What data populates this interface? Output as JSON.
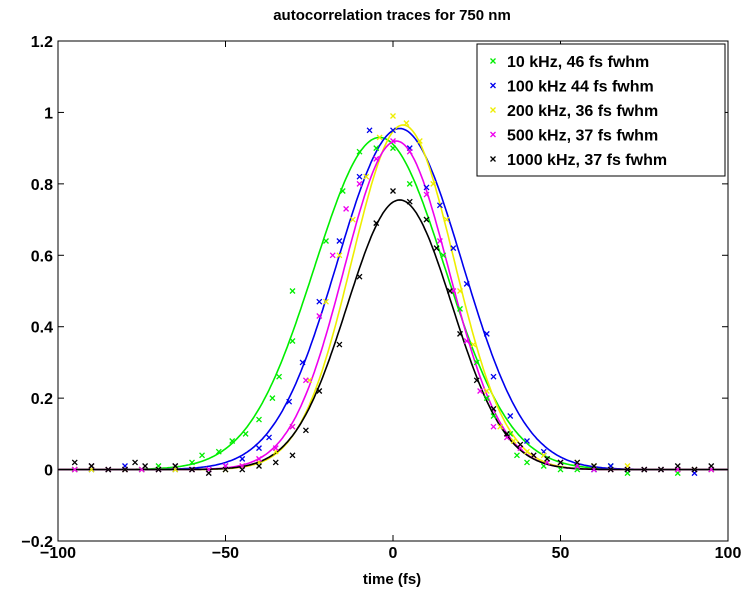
{
  "chart_data": {
    "type": "scatter",
    "title": "autocorrelation traces for 750 nm",
    "xlabel": "time (fs)",
    "ylabel": "",
    "xlim": [
      -100,
      100
    ],
    "ylim": [
      -0.2,
      1.2
    ],
    "xticks": [
      -100,
      -50,
      0,
      50,
      100
    ],
    "yticks": [
      -0.2,
      0,
      0.2,
      0.4,
      0.6,
      0.8,
      1,
      1.2
    ],
    "xtick_labels": [
      "−100",
      "−50",
      "0",
      "50",
      "100"
    ],
    "ytick_labels": [
      "−0.2",
      "0",
      "0.2",
      "0.4",
      "0.6",
      "0.8",
      "1",
      "1.2"
    ],
    "grid": false,
    "legend": "top-right",
    "series": [
      {
        "name": "10 kHz, 46 fs fwhm",
        "color": "#00ee00",
        "fit": {
          "peak": 0.93,
          "center": -4,
          "fwhm": 46
        },
        "points": [
          [
            -95,
            0.0
          ],
          [
            -90,
            0.01
          ],
          [
            -85,
            0.0
          ],
          [
            -80,
            0.0
          ],
          [
            -75,
            0.0
          ],
          [
            -70,
            0.01
          ],
          [
            -65,
            0.01
          ],
          [
            -60,
            0.02
          ],
          [
            -57,
            0.04
          ],
          [
            -52,
            0.05
          ],
          [
            -48,
            0.08
          ],
          [
            -44,
            0.1
          ],
          [
            -40,
            0.14
          ],
          [
            -36,
            0.2
          ],
          [
            -34,
            0.26
          ],
          [
            -30,
            0.36
          ],
          [
            -30,
            0.5
          ],
          [
            -20,
            0.64
          ],
          [
            -15,
            0.78
          ],
          [
            -10,
            0.89
          ],
          [
            -5,
            0.9
          ],
          [
            0,
            0.9
          ],
          [
            5,
            0.8
          ],
          [
            10,
            0.7
          ],
          [
            15,
            0.6
          ],
          [
            20,
            0.45
          ],
          [
            25,
            0.3
          ],
          [
            28,
            0.2
          ],
          [
            30,
            0.15
          ],
          [
            35,
            0.1
          ],
          [
            37,
            0.04
          ],
          [
            40,
            0.02
          ],
          [
            45,
            0.01
          ],
          [
            50,
            0.0
          ],
          [
            55,
            0.0
          ],
          [
            60,
            0.0
          ],
          [
            65,
            0.01
          ],
          [
            70,
            -0.01
          ],
          [
            75,
            0.0
          ],
          [
            80,
            0.0
          ],
          [
            85,
            -0.01
          ],
          [
            90,
            0.0
          ],
          [
            95,
            0.0
          ]
        ]
      },
      {
        "name": "100 kHz 44 fs fwhm",
        "color": "#0000ee",
        "fit": {
          "peak": 0.955,
          "center": 2,
          "fwhm": 44
        },
        "points": [
          [
            -95,
            0.0
          ],
          [
            -90,
            0.0
          ],
          [
            -85,
            0.0
          ],
          [
            -80,
            0.01
          ],
          [
            -75,
            0.0
          ],
          [
            -70,
            0.0
          ],
          [
            -65,
            0.0
          ],
          [
            -60,
            0.0
          ],
          [
            -55,
            0.0
          ],
          [
            -50,
            0.01
          ],
          [
            -45,
            0.03
          ],
          [
            -40,
            0.06
          ],
          [
            -37,
            0.09
          ],
          [
            -31,
            0.19
          ],
          [
            -27,
            0.3
          ],
          [
            -22,
            0.47
          ],
          [
            -16,
            0.64
          ],
          [
            -10,
            0.82
          ],
          [
            -7,
            0.95
          ],
          [
            0,
            0.95
          ],
          [
            5,
            0.9
          ],
          [
            10,
            0.79
          ],
          [
            14,
            0.74
          ],
          [
            18,
            0.62
          ],
          [
            22,
            0.52
          ],
          [
            28,
            0.38
          ],
          [
            30,
            0.26
          ],
          [
            35,
            0.15
          ],
          [
            40,
            0.08
          ],
          [
            45,
            0.05
          ],
          [
            50,
            0.02
          ],
          [
            55,
            0.01
          ],
          [
            60,
            0.0
          ],
          [
            65,
            0.01
          ],
          [
            70,
            0.0
          ],
          [
            75,
            0.0
          ],
          [
            80,
            0.0
          ],
          [
            85,
            0.0
          ],
          [
            90,
            -0.01
          ],
          [
            95,
            0.0
          ]
        ]
      },
      {
        "name": "200 kHz, 36 fs fwhm",
        "color": "#eeee00",
        "fit": {
          "peak": 0.965,
          "center": 3,
          "fwhm": 36
        },
        "points": [
          [
            -95,
            0.0
          ],
          [
            -90,
            0.0
          ],
          [
            -85,
            0.0
          ],
          [
            -80,
            0.0
          ],
          [
            -75,
            0.0
          ],
          [
            -70,
            0.0
          ],
          [
            -65,
            0.0
          ],
          [
            -60,
            0.0
          ],
          [
            -55,
            0.0
          ],
          [
            -50,
            0.0
          ],
          [
            -45,
            0.01
          ],
          [
            -40,
            0.02
          ],
          [
            -35,
            0.05
          ],
          [
            -30,
            0.12
          ],
          [
            -25,
            0.25
          ],
          [
            -20,
            0.47
          ],
          [
            -16,
            0.6
          ],
          [
            -12,
            0.7
          ],
          [
            -8,
            0.82
          ],
          [
            -4,
            0.93
          ],
          [
            0,
            0.99
          ],
          [
            4,
            0.97
          ],
          [
            8,
            0.92
          ],
          [
            12,
            0.8
          ],
          [
            16,
            0.7
          ],
          [
            20,
            0.5
          ],
          [
            24,
            0.35
          ],
          [
            28,
            0.22
          ],
          [
            32,
            0.12
          ],
          [
            36,
            0.08
          ],
          [
            40,
            0.05
          ],
          [
            45,
            0.04
          ],
          [
            50,
            0.02
          ],
          [
            55,
            0.02
          ],
          [
            60,
            0.01
          ],
          [
            65,
            0.0
          ],
          [
            70,
            0.01
          ],
          [
            75,
            0.0
          ],
          [
            80,
            0.0
          ],
          [
            85,
            0.0
          ],
          [
            90,
            0.0
          ],
          [
            95,
            0.0
          ]
        ]
      },
      {
        "name": "500 kHz, 37 fs fwhm",
        "color": "#ee00ee",
        "fit": {
          "peak": 0.92,
          "center": 1,
          "fwhm": 37
        },
        "points": [
          [
            -95,
            0.0
          ],
          [
            -90,
            0.01
          ],
          [
            -85,
            0.0
          ],
          [
            -80,
            0.0
          ],
          [
            -75,
            0.0
          ],
          [
            -70,
            0.0
          ],
          [
            -65,
            0.01
          ],
          [
            -60,
            0.0
          ],
          [
            -55,
            0.0
          ],
          [
            -50,
            0.01
          ],
          [
            -45,
            0.01
          ],
          [
            -40,
            0.03
          ],
          [
            -35,
            0.06
          ],
          [
            -30,
            0.12
          ],
          [
            -26,
            0.25
          ],
          [
            -22,
            0.43
          ],
          [
            -18,
            0.6
          ],
          [
            -14,
            0.73
          ],
          [
            -10,
            0.8
          ],
          [
            -5,
            0.87
          ],
          [
            0,
            0.92
          ],
          [
            5,
            0.89
          ],
          [
            10,
            0.77
          ],
          [
            14,
            0.64
          ],
          [
            18,
            0.5
          ],
          [
            22,
            0.36
          ],
          [
            26,
            0.22
          ],
          [
            30,
            0.12
          ],
          [
            34,
            0.09
          ],
          [
            38,
            0.06
          ],
          [
            42,
            0.04
          ],
          [
            46,
            0.02
          ],
          [
            50,
            0.02
          ],
          [
            55,
            0.01
          ],
          [
            60,
            0.0
          ],
          [
            65,
            0.0
          ],
          [
            70,
            0.0
          ],
          [
            75,
            0.0
          ],
          [
            80,
            0.0
          ],
          [
            85,
            0.0
          ],
          [
            90,
            0.0
          ],
          [
            95,
            0.0
          ]
        ]
      },
      {
        "name": "1000 kHz, 37 fs fwhm",
        "color": "#000000",
        "fit": {
          "peak": 0.755,
          "center": 2,
          "fwhm": 37
        },
        "points": [
          [
            -95,
            0.02
          ],
          [
            -90,
            0.01
          ],
          [
            -85,
            0.0
          ],
          [
            -80,
            0.0
          ],
          [
            -77,
            0.02
          ],
          [
            -74,
            0.01
          ],
          [
            -70,
            0.0
          ],
          [
            -65,
            0.01
          ],
          [
            -60,
            0.0
          ],
          [
            -55,
            -0.01
          ],
          [
            -50,
            0.0
          ],
          [
            -45,
            0.0
          ],
          [
            -40,
            0.01
          ],
          [
            -35,
            0.02
          ],
          [
            -30,
            0.04
          ],
          [
            -26,
            0.11
          ],
          [
            -22,
            0.22
          ],
          [
            -16,
            0.35
          ],
          [
            -10,
            0.54
          ],
          [
            -5,
            0.69
          ],
          [
            0,
            0.78
          ],
          [
            5,
            0.75
          ],
          [
            10,
            0.7
          ],
          [
            13,
            0.62
          ],
          [
            17,
            0.5
          ],
          [
            20,
            0.38
          ],
          [
            25,
            0.25
          ],
          [
            30,
            0.17
          ],
          [
            34,
            0.1
          ],
          [
            38,
            0.07
          ],
          [
            42,
            0.04
          ],
          [
            46,
            0.03
          ],
          [
            50,
            0.02
          ],
          [
            55,
            0.02
          ],
          [
            60,
            0.01
          ],
          [
            65,
            0.0
          ],
          [
            70,
            0.0
          ],
          [
            75,
            0.0
          ],
          [
            80,
            0.0
          ],
          [
            85,
            0.01
          ],
          [
            90,
            0.0
          ],
          [
            95,
            0.01
          ]
        ]
      }
    ]
  }
}
